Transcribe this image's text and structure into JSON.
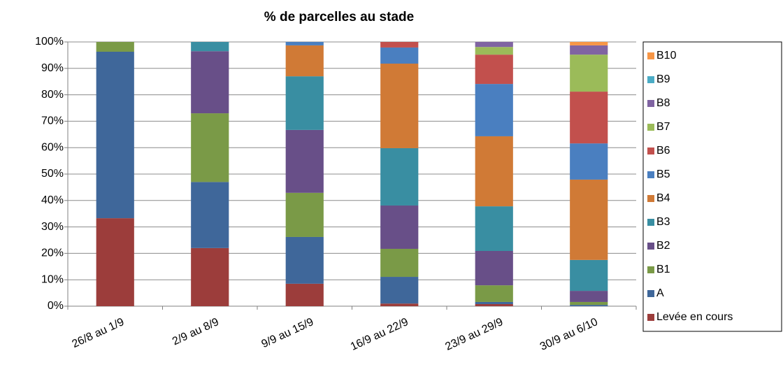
{
  "chart_data": {
    "type": "stacked_bar",
    "title": "% de parcelles au stade",
    "categories": [
      "26/8 au 1/9",
      "2/9 au 8/9",
      "9/9 au 15/9",
      "16/9 au 22/9",
      "23/9 au 29/9",
      "30/9 au 6/10"
    ],
    "series": [
      {
        "name": "Levée en cours",
        "color": "#9c3d3b",
        "values": [
          33.3,
          22,
          8.5,
          1,
          0.8,
          0
        ]
      },
      {
        "name": "A",
        "color": "#3f679a",
        "values": [
          63,
          25,
          17.7,
          10.1,
          0.8,
          0.5
        ]
      },
      {
        "name": "B1",
        "color": "#7a9a47",
        "values": [
          3.7,
          26,
          16.7,
          10.6,
          6.3,
          1.1
        ]
      },
      {
        "name": "B2",
        "color": "#684f88",
        "values": [
          0,
          23.5,
          23.8,
          16.4,
          13,
          4.2
        ]
      },
      {
        "name": "B3",
        "color": "#398ea2",
        "values": [
          0,
          3.5,
          20.3,
          21.7,
          16.9,
          11.7
        ]
      },
      {
        "name": "B4",
        "color": "#d07a36",
        "values": [
          0,
          0,
          11.7,
          32,
          26.5,
          30.4
        ]
      },
      {
        "name": "B5",
        "color": "#4a7fc0",
        "values": [
          0,
          0,
          1.3,
          6.1,
          19.8,
          13.7
        ]
      },
      {
        "name": "B6",
        "color": "#c2504d",
        "values": [
          0,
          0,
          0,
          2.1,
          11.1,
          19.6
        ]
      },
      {
        "name": "B7",
        "color": "#9bbb59",
        "values": [
          0,
          0,
          0,
          0,
          2.9,
          14
        ]
      },
      {
        "name": "B8",
        "color": "#8064a2",
        "values": [
          0,
          0,
          0,
          0,
          1.9,
          3.5
        ]
      },
      {
        "name": "B9",
        "color": "#4bacc6",
        "values": [
          0,
          0,
          0,
          0,
          0,
          0
        ]
      },
      {
        "name": "B10",
        "color": "#f79646",
        "values": [
          0,
          0,
          0,
          0,
          0,
          1.3
        ]
      }
    ],
    "ylim": [
      0,
      100
    ],
    "yticks": [
      {
        "value": 0,
        "label": "0%"
      },
      {
        "value": 10,
        "label": "10%"
      },
      {
        "value": 20,
        "label": "20%"
      },
      {
        "value": 30,
        "label": "30%"
      },
      {
        "value": 40,
        "label": "40%"
      },
      {
        "value": 50,
        "label": "50%"
      },
      {
        "value": 60,
        "label": "60%"
      },
      {
        "value": 70,
        "label": "70%"
      },
      {
        "value": 80,
        "label": "80%"
      },
      {
        "value": 90,
        "label": "90%"
      },
      {
        "value": 100,
        "label": "100%"
      }
    ],
    "grid": true,
    "legend": "right"
  }
}
